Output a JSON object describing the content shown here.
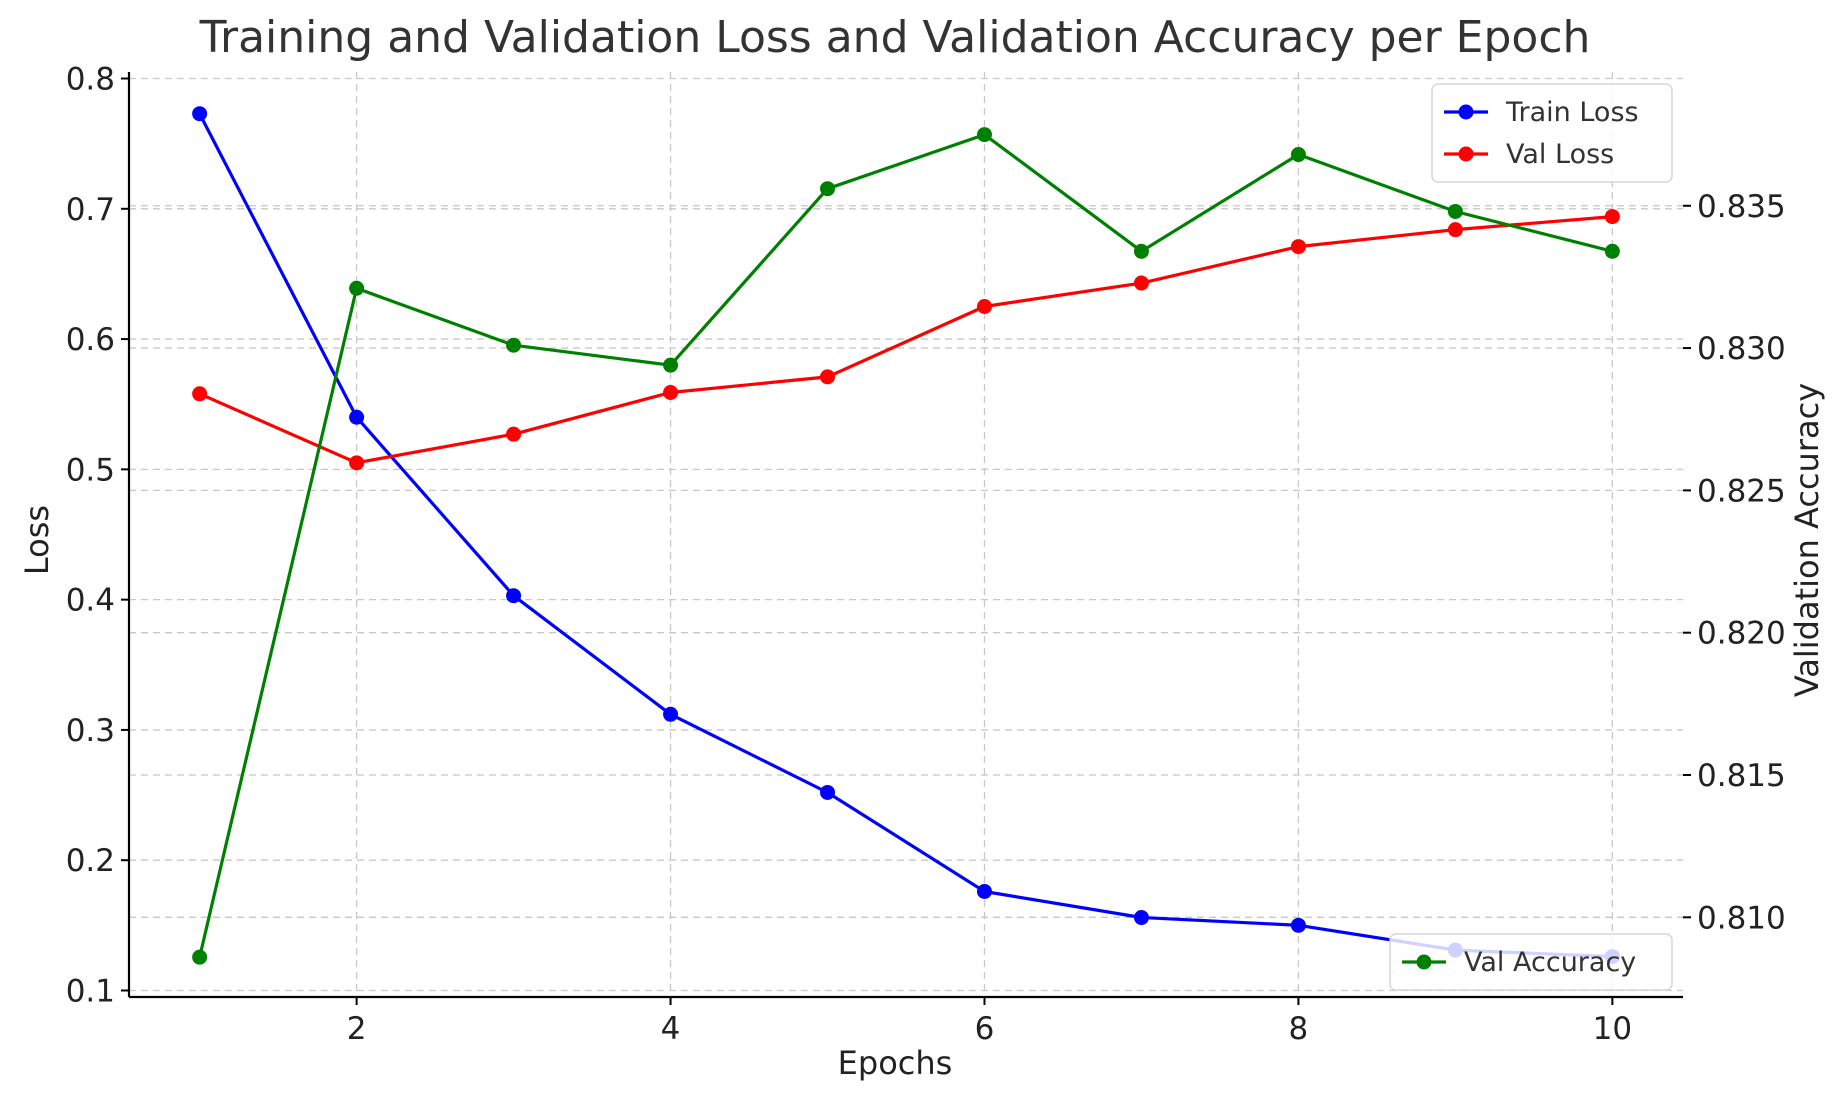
{
  "chart_data": {
    "type": "line",
    "title": "Training and Validation Loss and Validation Accuracy per Epoch",
    "xlabel": "Epochs",
    "ylabel_left": "Loss",
    "ylabel_right": "Validation Accuracy",
    "x": [
      1,
      2,
      3,
      4,
      5,
      6,
      7,
      8,
      9,
      10
    ],
    "xlim": [
      0.55,
      10.45
    ],
    "ylim_left": [
      0.095,
      0.805
    ],
    "ylim_right": [
      0.8072,
      0.8397
    ],
    "xticks": [
      2,
      4,
      6,
      8,
      10
    ],
    "xtick_labels": [
      "2",
      "4",
      "6",
      "8",
      "10"
    ],
    "yticks_left": [
      0.1,
      0.2,
      0.3,
      0.4,
      0.5,
      0.6,
      0.7,
      0.8
    ],
    "ytick_labels_left": [
      "0.1",
      "0.2",
      "0.3",
      "0.4",
      "0.5",
      "0.6",
      "0.7",
      "0.8"
    ],
    "yticks_right": [
      0.81,
      0.815,
      0.82,
      0.825,
      0.83,
      0.835
    ],
    "ytick_labels_right": [
      "0.810",
      "0.815",
      "0.820",
      "0.825",
      "0.830",
      "0.835"
    ],
    "grid": true,
    "series": [
      {
        "name": "Train Loss",
        "axis": "left",
        "color": "#0000ff",
        "values": [
          0.773,
          0.54,
          0.403,
          0.312,
          0.252,
          0.176,
          0.156,
          0.15,
          0.131,
          0.126
        ]
      },
      {
        "name": "Val Loss",
        "axis": "left",
        "color": "#ff0000",
        "values": [
          0.558,
          0.505,
          0.527,
          0.559,
          0.571,
          0.625,
          0.643,
          0.671,
          0.684,
          0.694
        ]
      },
      {
        "name": "Val Accuracy",
        "axis": "right",
        "color": "#008000",
        "values": [
          0.8086,
          0.8321,
          0.8301,
          0.8294,
          0.8356,
          0.8375,
          0.8334,
          0.8368,
          0.8348,
          0.8334
        ]
      }
    ],
    "legend_left_position": "top-right",
    "legend_right_position": "bottom-right"
  }
}
